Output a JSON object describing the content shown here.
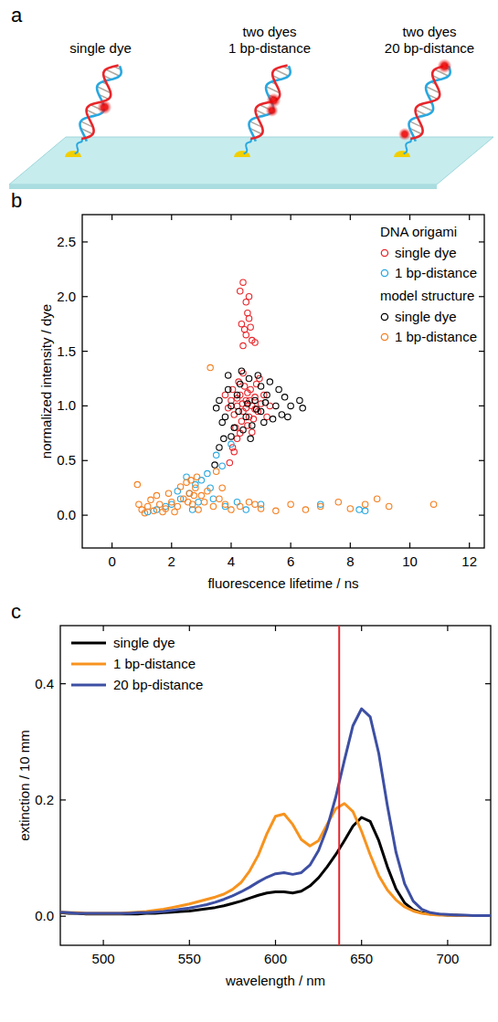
{
  "diagram": {
    "panel": "a",
    "labels": [
      [
        "single dye"
      ],
      [
        "two dyes",
        "1 bp-distance"
      ],
      [
        "two dyes",
        "20 bp-distance"
      ]
    ]
  },
  "chart_data": [
    {
      "panel": "b",
      "type": "scatter",
      "x_label": "fluorescence lifetime / ns",
      "y_label": "normalized intensity / dye",
      "xlim": [
        -1,
        12.5
      ],
      "xticks": [
        0,
        2,
        4,
        6,
        8,
        10,
        12
      ],
      "ylim": [
        -0.3,
        2.75
      ],
      "yticks": [
        {
          "value": 0,
          "label": "0.0"
        },
        {
          "value": 0.5,
          "label": "0.5"
        },
        {
          "value": 1,
          "label": "1.0"
        },
        {
          "value": 1.5,
          "label": "1.5"
        },
        {
          "value": 2,
          "label": "2.0"
        },
        {
          "value": 2.5,
          "label": "2.5"
        }
      ],
      "grid": false,
      "legend": "upper right",
      "marker": "circle",
      "series": [
        {
          "name": "single dye",
          "group": "DNA origami",
          "color": "#e8262b",
          "x": [
            4.2,
            4.4,
            4.5,
            4.3,
            4.6,
            4.7,
            4.8,
            4.1,
            4.0,
            4.9,
            5.0,
            4.45,
            4.55,
            4.35,
            4.65,
            4.25,
            4.75,
            3.9,
            5.1,
            4.5,
            4.38,
            4.62,
            4.85,
            4.15,
            4.05,
            5.2,
            4.95,
            4.3,
            3.8,
            4.7,
            4.4,
            5.3,
            4.55,
            4.2,
            4.8,
            4.3,
            4.4,
            4.5,
            4.55,
            4.6,
            4.35,
            4.45,
            4.7,
            4.5,
            4.65,
            4.4,
            4.8,
            4.6,
            3.95,
            4.05,
            4.2,
            4.1
          ],
          "values": [
            1.0,
            0.95,
            1.05,
            1.1,
            0.9,
            1.0,
            1.08,
            0.92,
            1.05,
            0.95,
            1.02,
            1.18,
            0.82,
            0.86,
            1.15,
            1.22,
            0.88,
            0.98,
            1.1,
            0.98,
            1.02,
            1.05,
            1.2,
            0.8,
            1.15,
            0.9,
            1.25,
            0.75,
            1.1,
            0.76,
            1.3,
            1.0,
            1.12,
            1.07,
            0.97,
            2.05,
            2.13,
            1.95,
            1.85,
            1.8,
            1.75,
            1.7,
            1.6,
            1.65,
            1.72,
            1.55,
            1.58,
            2.0,
            0.48,
            0.62,
            0.7,
            0.58
          ]
        },
        {
          "name": "1 bp-distance",
          "group": "DNA origami",
          "color": "#29a8e0",
          "x": [
            1.5,
            2.0,
            2.3,
            2.6,
            2.8,
            3.0,
            3.2,
            3.5,
            3.7,
            4.0,
            3.3,
            2.5,
            1.8,
            2.9,
            3.8,
            4.5,
            5.0,
            7.0,
            8.3,
            8.5,
            3.4,
            2.2,
            2.7,
            1.2,
            4.2
          ],
          "values": [
            0.05,
            0.1,
            0.15,
            0.2,
            0.28,
            0.32,
            0.38,
            0.55,
            0.45,
            0.65,
            0.25,
            0.35,
            0.08,
            0.12,
            0.08,
            0.05,
            0.1,
            0.1,
            0.05,
            0.04,
            0.15,
            0.22,
            0.05,
            0.03,
            0.12
          ]
        },
        {
          "name": "single dye",
          "group": "model structure",
          "color": "#000000",
          "x": [
            4.0,
            4.2,
            4.5,
            4.8,
            5.0,
            5.2,
            5.5,
            5.7,
            3.8,
            3.6,
            3.5,
            4.3,
            4.6,
            4.9,
            5.3,
            3.9,
            4.1,
            4.4,
            4.7,
            5.1,
            5.4,
            5.8,
            6.0,
            6.3,
            6.4,
            3.7,
            4.25,
            4.55,
            4.85,
            5.15,
            5.6,
            3.45,
            3.6,
            3.75,
            4.0,
            4.35,
            5.0,
            5.9,
            4.65,
            3.9
          ],
          "values": [
            1.0,
            1.1,
            0.9,
            1.05,
            0.95,
            1.1,
            1.0,
            0.92,
            0.9,
            1.05,
            0.98,
            1.2,
            1.25,
            1.28,
            1.22,
            1.15,
            0.8,
            0.78,
            0.82,
            0.85,
            0.88,
            1.08,
            1.0,
            1.05,
            0.98,
            0.85,
            0.95,
            1.02,
            0.97,
            1.03,
            1.15,
            0.46,
            0.62,
            0.7,
            0.72,
            1.32,
            1.18,
            0.9,
            0.7,
            1.28
          ]
        },
        {
          "name": "1 bp-distance",
          "group": "model structure",
          "color": "#f47f20",
          "x": [
            1.0,
            1.2,
            1.4,
            1.6,
            1.8,
            2.0,
            2.2,
            2.4,
            2.6,
            2.8,
            3.0,
            3.2,
            2.5,
            2.7,
            2.9,
            3.1,
            3.4,
            3.6,
            3.8,
            4.0,
            4.3,
            4.6,
            5.0,
            1.5,
            1.9,
            2.3,
            2.1,
            0.9,
            0.85,
            1.3,
            2.65,
            2.85,
            3.3,
            3.5,
            5.5,
            6.0,
            6.5,
            7.0,
            7.6,
            8.0,
            8.5,
            8.9,
            9.3,
            10.8,
            2.55,
            2.75,
            1.1,
            1.7,
            3.7,
            4.8
          ],
          "values": [
            0.05,
            0.08,
            0.04,
            0.1,
            0.06,
            0.12,
            0.08,
            0.15,
            0.2,
            0.25,
            0.18,
            0.22,
            0.3,
            0.1,
            0.05,
            0.12,
            0.08,
            0.15,
            0.1,
            0.05,
            0.08,
            0.12,
            0.06,
            0.18,
            0.2,
            0.26,
            0.03,
            0.1,
            0.28,
            0.14,
            0.32,
            0.35,
            1.35,
            0.4,
            0.04,
            0.1,
            0.05,
            0.08,
            0.12,
            0.06,
            0.1,
            0.15,
            0.08,
            0.1,
            0.12,
            0.18,
            0.02,
            0.03,
            0.25,
            0.1
          ]
        }
      ]
    },
    {
      "panel": "c",
      "type": "line",
      "x_label": "wavelength / nm",
      "y_label": "extinction / 10 mm",
      "xlim": [
        475,
        725
      ],
      "xticks": [
        500,
        550,
        600,
        650,
        700
      ],
      "ylim": [
        -0.05,
        0.5
      ],
      "yticks": [
        {
          "value": 0,
          "label": "0.0"
        },
        {
          "value": 0.2,
          "label": "0.2"
        },
        {
          "value": 0.4,
          "label": "0.4"
        }
      ],
      "grid": false,
      "legend": "upper left",
      "line_style": "solid",
      "x": [
        475,
        480,
        485,
        490,
        495,
        500,
        505,
        510,
        515,
        520,
        525,
        530,
        535,
        540,
        545,
        550,
        555,
        560,
        565,
        570,
        575,
        580,
        585,
        590,
        595,
        600,
        605,
        610,
        615,
        620,
        625,
        630,
        635,
        640,
        645,
        650,
        655,
        660,
        665,
        670,
        675,
        680,
        685,
        690,
        695,
        700,
        705,
        710,
        715,
        720,
        725
      ],
      "series": [
        {
          "name": "single dye",
          "color": "#000000",
          "values": [
            0.006,
            0.005,
            0.005,
            0.004,
            0.004,
            0.004,
            0.004,
            0.004,
            0.004,
            0.004,
            0.005,
            0.005,
            0.006,
            0.007,
            0.008,
            0.009,
            0.011,
            0.013,
            0.015,
            0.018,
            0.022,
            0.026,
            0.031,
            0.036,
            0.04,
            0.042,
            0.042,
            0.04,
            0.043,
            0.052,
            0.066,
            0.085,
            0.106,
            0.13,
            0.155,
            0.17,
            0.163,
            0.13,
            0.085,
            0.047,
            0.023,
            0.011,
            0.006,
            0.004,
            0.003,
            0.002,
            0.002,
            0.001,
            0.001,
            0.001,
            0.001
          ]
        },
        {
          "name": "1 bp-distance",
          "color": "#f7931e",
          "values": [
            0.007,
            0.006,
            0.006,
            0.005,
            0.005,
            0.005,
            0.005,
            0.005,
            0.006,
            0.007,
            0.008,
            0.01,
            0.012,
            0.015,
            0.018,
            0.021,
            0.025,
            0.029,
            0.033,
            0.038,
            0.046,
            0.058,
            0.078,
            0.105,
            0.142,
            0.172,
            0.176,
            0.158,
            0.132,
            0.121,
            0.13,
            0.158,
            0.185,
            0.194,
            0.18,
            0.146,
            0.106,
            0.07,
            0.045,
            0.028,
            0.016,
            0.009,
            0.005,
            0.003,
            0.002,
            0.002,
            0.001,
            0.001,
            0.001,
            0.001,
            0.001
          ]
        },
        {
          "name": "20 bp-distance",
          "color": "#3d4fa3",
          "values": [
            0.007,
            0.006,
            0.005,
            0.005,
            0.005,
            0.005,
            0.005,
            0.005,
            0.005,
            0.006,
            0.006,
            0.007,
            0.008,
            0.01,
            0.012,
            0.014,
            0.017,
            0.02,
            0.024,
            0.029,
            0.035,
            0.042,
            0.05,
            0.059,
            0.067,
            0.073,
            0.075,
            0.072,
            0.075,
            0.088,
            0.113,
            0.152,
            0.205,
            0.268,
            0.328,
            0.357,
            0.343,
            0.28,
            0.19,
            0.11,
            0.056,
            0.026,
            0.012,
            0.006,
            0.004,
            0.003,
            0.002,
            0.002,
            0.001,
            0.001,
            0.001
          ]
        }
      ],
      "vline": {
        "x": 637,
        "color": "#e8262b"
      }
    }
  ]
}
